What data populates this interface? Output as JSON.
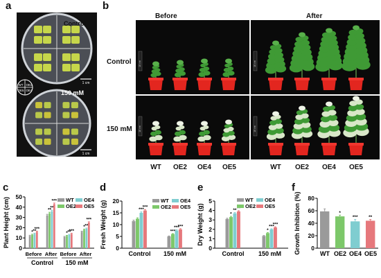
{
  "panels": {
    "a": {
      "letter": "a",
      "top_label": "Control",
      "bottom_label": "150 mM",
      "scale_top": "1 cm",
      "scale_bottom": "1 cm",
      "key": [
        "WT",
        "OE2",
        "OE5",
        "OE4"
      ]
    },
    "b": {
      "letter": "b",
      "before": "Before",
      "after": "After",
      "row_control": "Control",
      "row_salt": "150 mM",
      "scale": "10 cm",
      "genotypes": [
        "WT",
        "OE2",
        "OE4",
        "OE5"
      ]
    },
    "c": {
      "letter": "c"
    },
    "d": {
      "letter": "d"
    },
    "e": {
      "letter": "e"
    },
    "f": {
      "letter": "f"
    }
  },
  "colors": {
    "WT": "#9a9a9a",
    "OE2": "#7dc86a",
    "OE4": "#7fcdd0",
    "OE5": "#e6787c",
    "photo_bg": "#0a0a0a",
    "pot": "#e3261f",
    "plant": "#3f9a35"
  },
  "chart_data": [
    {
      "id": "c",
      "type": "bar",
      "title": "",
      "xlabel": "",
      "ylabel": "Plant Height (cm)",
      "ylim": [
        0,
        50
      ],
      "yticks": [
        0,
        10,
        20,
        30,
        40,
        50
      ],
      "categories": [
        "Before",
        "After",
        "Before",
        "After"
      ],
      "groups": [
        "Control",
        "150 mM"
      ],
      "legend": [
        "WT",
        "OE2",
        "OE4",
        "OE5"
      ],
      "series": [
        {
          "name": "WT",
          "values": [
            12,
            32,
            11,
            16
          ],
          "errors": [
            0.6,
            1.0,
            0.5,
            0.6
          ]
        },
        {
          "name": "OE2",
          "values": [
            13,
            34,
            12,
            18
          ],
          "errors": [
            0.6,
            1.0,
            0.5,
            0.6
          ]
        },
        {
          "name": "OE4",
          "values": [
            14,
            36,
            13,
            19
          ],
          "errors": [
            0.6,
            1.0,
            0.5,
            0.6
          ]
        },
        {
          "name": "OE5",
          "values": [
            16,
            43,
            14,
            25
          ],
          "errors": [
            0.6,
            1.0,
            0.6,
            0.8
          ]
        }
      ],
      "stars": [
        [
          "",
          "",
          "",
          ""
        ],
        [
          "*",
          "**",
          "*",
          "*"
        ],
        [
          "**",
          "**",
          "**",
          "**"
        ],
        [
          "***",
          "***",
          "***",
          "***"
        ]
      ]
    },
    {
      "id": "d",
      "type": "bar",
      "title": "",
      "xlabel": "",
      "ylabel": "Fresh Weight (g)",
      "ylim": [
        0,
        20
      ],
      "yticks": [
        0,
        5,
        10,
        15,
        20
      ],
      "categories": [
        "Control",
        "150 mM"
      ],
      "legend": [
        "WT",
        "OE2",
        "OE4",
        "OE5"
      ],
      "series": [
        {
          "name": "WT",
          "values": [
            11.5,
            5
          ],
          "errors": [
            0.4,
            0.2
          ]
        },
        {
          "name": "OE2",
          "values": [
            12.5,
            6
          ],
          "errors": [
            0.4,
            0.2
          ]
        },
        {
          "name": "OE4",
          "values": [
            15,
            7.5
          ],
          "errors": [
            0.4,
            0.3
          ]
        },
        {
          "name": "OE5",
          "values": [
            16,
            8
          ],
          "errors": [
            0.4,
            0.3
          ]
        }
      ],
      "stars": [
        [
          "",
          ""
        ],
        [
          "",
          "***"
        ],
        [
          "***",
          "***"
        ],
        [
          "***",
          "***"
        ]
      ]
    },
    {
      "id": "e",
      "type": "bar",
      "title": "",
      "xlabel": "",
      "ylabel": "Dry Weight (g)",
      "ylim": [
        0,
        5
      ],
      "yticks": [
        0,
        1,
        2,
        3,
        4,
        5
      ],
      "categories": [
        "Control",
        "150 mM"
      ],
      "legend": [
        "WT",
        "OE2",
        "OE4",
        "OE5"
      ],
      "series": [
        {
          "name": "WT",
          "values": [
            3.1,
            1.3
          ],
          "errors": [
            0.08,
            0.05
          ]
        },
        {
          "name": "OE2",
          "values": [
            3.3,
            1.6
          ],
          "errors": [
            0.08,
            0.06
          ]
        },
        {
          "name": "OE4",
          "values": [
            3.7,
            2.0
          ],
          "errors": [
            0.08,
            0.06
          ]
        },
        {
          "name": "OE5",
          "values": [
            3.9,
            2.2
          ],
          "errors": [
            0.08,
            0.07
          ]
        }
      ],
      "stars": [
        [
          "",
          ""
        ],
        [
          "*",
          "*"
        ],
        [
          "**",
          "***"
        ],
        [
          "**",
          "***"
        ]
      ]
    },
    {
      "id": "f",
      "type": "bar",
      "title": "",
      "xlabel": "",
      "ylabel": "Growth Inhibition (%)",
      "ylim": [
        0,
        80
      ],
      "yticks": [
        0,
        20,
        40,
        60,
        80
      ],
      "categories": [
        "WT",
        "OE2",
        "OE4",
        "OE5"
      ],
      "series": [
        {
          "name": "",
          "values": [
            59,
            51,
            43,
            44
          ],
          "errors": [
            4,
            2,
            3,
            2
          ]
        }
      ],
      "stars": [
        "",
        "*",
        "***",
        "**"
      ]
    }
  ]
}
